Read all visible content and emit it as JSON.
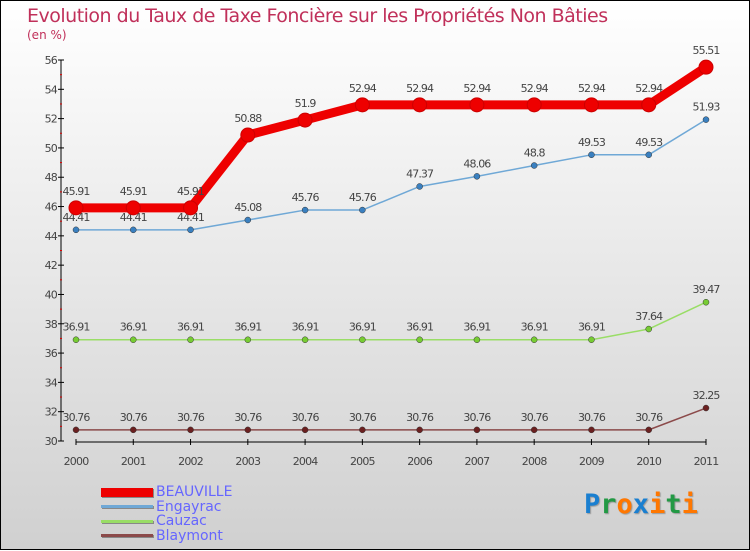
{
  "chart_data": {
    "type": "line",
    "title": "Evolution du Taux de Taxe Foncière sur les Propriétés Non Bâties",
    "ylabel": "(en %)",
    "xlabel": "",
    "x": [
      "2000",
      "2001",
      "2002",
      "2003",
      "2004",
      "2005",
      "2006",
      "2007",
      "2008",
      "2009",
      "2010",
      "2011"
    ],
    "ylim": [
      30,
      56
    ],
    "yticks": [
      30,
      32,
      34,
      36,
      38,
      40,
      42,
      44,
      46,
      48,
      50,
      52,
      54,
      56
    ],
    "legend_position": "bottom-left",
    "series": [
      {
        "name": "BEAUVILLE",
        "color": "#ee0000",
        "values": [
          45.91,
          45.91,
          45.91,
          50.88,
          51.9,
          52.94,
          52.94,
          52.94,
          52.94,
          52.94,
          52.94,
          55.51
        ],
        "labels": [
          "45.91",
          "45.91",
          "45.91",
          "50.88",
          "51.9",
          "52.94",
          "52.94",
          "52.94",
          "52.94",
          "52.94",
          "52.94",
          "55.51"
        ]
      },
      {
        "name": "Engayrac",
        "color": "#6fa8d6",
        "marker": "#3a80c0",
        "values": [
          44.41,
          44.41,
          44.41,
          45.08,
          45.76,
          45.76,
          47.37,
          48.06,
          48.8,
          49.53,
          49.53,
          51.93
        ],
        "labels": [
          "44.41",
          "44.41",
          "44.41",
          "45.08",
          "45.76",
          "45.76",
          "47.37",
          "48.06",
          "48.8",
          "49.53",
          "49.53",
          "51.93"
        ]
      },
      {
        "name": "Cauzac",
        "color": "#99dd66",
        "marker": "#77cc33",
        "values": [
          36.91,
          36.91,
          36.91,
          36.91,
          36.91,
          36.91,
          36.91,
          36.91,
          36.91,
          36.91,
          37.64,
          39.47
        ],
        "labels": [
          "36.91",
          "36.91",
          "36.91",
          "36.91",
          "36.91",
          "36.91",
          "36.91",
          "36.91",
          "36.91",
          "36.91",
          "37.64",
          "39.47"
        ]
      },
      {
        "name": "Blaymont",
        "color": "#8b4a4a",
        "marker": "#6b2020",
        "values": [
          30.76,
          30.76,
          30.76,
          30.76,
          30.76,
          30.76,
          30.76,
          30.76,
          30.76,
          30.76,
          30.76,
          32.25
        ],
        "labels": [
          "30.76",
          "30.76",
          "30.76",
          "30.76",
          "30.76",
          "30.76",
          "30.76",
          "30.76",
          "30.76",
          "30.76",
          "30.76",
          "32.25"
        ]
      }
    ]
  },
  "logo": {
    "letters": [
      "P",
      "r",
      "o",
      "x",
      "i",
      "t",
      "i"
    ],
    "colors": [
      "#1a7fd0",
      "#229944",
      "#ff7700",
      "#1a7fd0",
      "#ff7700",
      "#229944",
      "#ff7700"
    ]
  }
}
